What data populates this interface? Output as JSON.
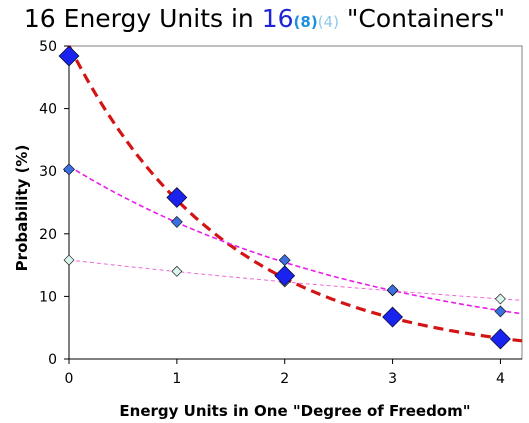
{
  "title": {
    "prefix": "16 Energy Units in ",
    "big": "16",
    "sub8": "(8)",
    "sub4": "(4)",
    "suffix": " \"Containers\""
  },
  "colors": {
    "series_16": "#1a22ee",
    "series_8": "#3b6fe0",
    "series_4": "#d9f5f0",
    "trend_16": "#d41414",
    "trend_8": "#e81ee8",
    "trend_4": "#f06ad6"
  },
  "chart_data": {
    "type": "scatter",
    "title": "16 Energy Units in 16(8)(4) \"Containers\"",
    "xlabel": "Energy Units in One \"Degree of Freedom\"",
    "ylabel": "Probability (%)",
    "xlim": [
      0,
      4.2
    ],
    "ylim": [
      0,
      50
    ],
    "x_ticks": [
      0,
      1,
      2,
      3,
      4
    ],
    "y_ticks": [
      0,
      10,
      20,
      30,
      40,
      50
    ],
    "grid": false,
    "legend": "none",
    "series": [
      {
        "x": [
          0,
          1,
          2,
          3,
          4
        ],
        "y": [
          48.4,
          25.8,
          13.3,
          6.7,
          3.2
        ]
      },
      {
        "x": [
          0,
          1,
          2,
          3,
          4
        ],
        "y": [
          30.3,
          21.9,
          15.8,
          11.0,
          7.6
        ]
      },
      {
        "x": [
          0,
          1,
          2,
          3,
          4
        ],
        "y": [
          15.8,
          14.0,
          12.3,
          10.9,
          9.6
        ]
      }
    ]
  }
}
